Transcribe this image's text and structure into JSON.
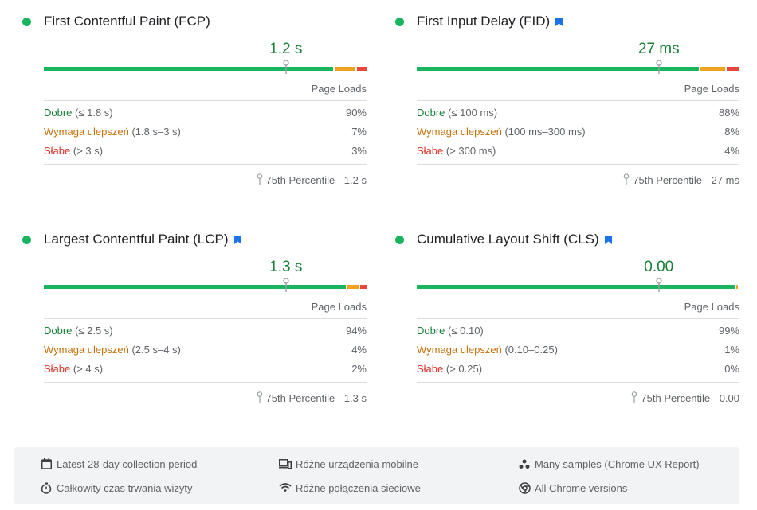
{
  "colors": {
    "good": "#18b55e",
    "needs_improvement": "#f0a21e",
    "poor": "#e8453c",
    "marker": "#9aa0a6"
  },
  "metrics": [
    {
      "title": "First Contentful Paint (FCP)",
      "bookmark": false,
      "value": "1.2 s",
      "page_loads": "Page Loads",
      "good_label": "Dobre",
      "good_range": "(≤ 1.8 s)",
      "good_pct": "90%",
      "ni_label": "Wymaga ulepszeń",
      "ni_range": "(1.8 s–3 s)",
      "ni_pct": "7%",
      "poor_label": "Słabe",
      "poor_range": "(> 3 s)",
      "poor_pct": "3%",
      "p75": "75th Percentile - 1.2 s",
      "distribution": [
        0.9,
        0.07,
        0.03
      ],
      "marker_position": 0.75
    },
    {
      "title": "First Input Delay (FID)",
      "bookmark": true,
      "value": "27 ms",
      "page_loads": "Page Loads",
      "good_label": "Dobre",
      "good_range": "(≤ 100 ms)",
      "good_pct": "88%",
      "ni_label": "Wymaga ulepszeń",
      "ni_range": "(100 ms–300 ms)",
      "ni_pct": "8%",
      "poor_label": "Słabe",
      "poor_range": "(> 300 ms)",
      "poor_pct": "4%",
      "p75": "75th Percentile - 27 ms",
      "distribution": [
        0.88,
        0.08,
        0.04
      ],
      "marker_position": 0.75
    },
    {
      "title": "Largest Contentful Paint (LCP)",
      "bookmark": true,
      "value": "1.3 s",
      "page_loads": "Page Loads",
      "good_label": "Dobre",
      "good_range": "(≤ 2.5 s)",
      "good_pct": "94%",
      "ni_label": "Wymaga ulepszeń",
      "ni_range": "(2.5 s–4 s)",
      "ni_pct": "4%",
      "poor_label": "Słabe",
      "poor_range": "(> 4 s)",
      "poor_pct": "2%",
      "p75": "75th Percentile - 1.3 s",
      "distribution": [
        0.94,
        0.04,
        0.02
      ],
      "marker_position": 0.75
    },
    {
      "title": "Cumulative Layout Shift (CLS)",
      "bookmark": true,
      "value": "0.00",
      "page_loads": "Page Loads",
      "good_label": "Dobre",
      "good_range": "(≤ 0.10)",
      "good_pct": "99%",
      "ni_label": "Wymaga ulepszeń",
      "ni_range": "(0.10–0.25)",
      "ni_pct": "1%",
      "poor_label": "Słabe",
      "poor_range": "(> 0.25)",
      "poor_pct": "0%",
      "p75": "75th Percentile - 0.00",
      "distribution": [
        0.99,
        0.01,
        0.0
      ],
      "marker_position": 0.75
    }
  ],
  "footer": {
    "collection_period": "Latest 28-day collection period",
    "visit_duration": "Całkowity czas trwania wizyty",
    "devices": "Różne urządzenia mobilne",
    "network": "Różne połączenia sieciowe",
    "samples_prefix": "Many samples (",
    "samples_link": "Chrome UX Report",
    "samples_suffix": ")",
    "chrome_versions": "All Chrome versions",
    "icons": [
      "calendar-icon",
      "timer-icon",
      "devices-icon",
      "wifi-icon",
      "samples-icon",
      "chrome-icon"
    ]
  }
}
